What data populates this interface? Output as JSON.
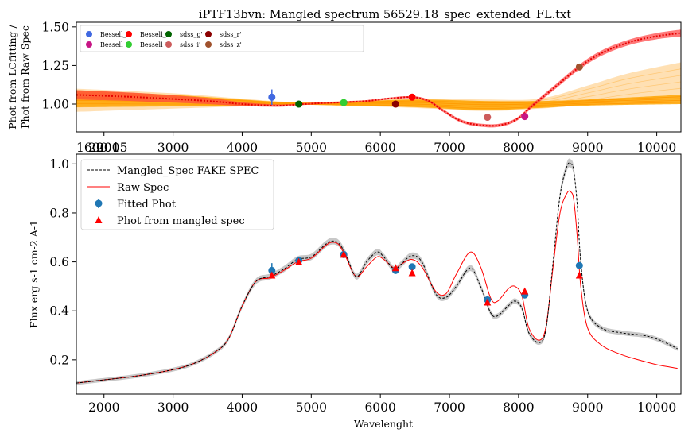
{
  "chart_data": [
    {
      "type": "line",
      "title": "iPTF13bvn: Mangled spectrum 56529.18_spec_extended_FL.txt",
      "xlabel": "",
      "ylabel": [
        "Phot from LCfitting /",
        "Phot from Raw Spec"
      ],
      "xlim": [
        1600,
        10350
      ],
      "ylim": [
        0.82,
        1.53
      ],
      "x_ticks": [
        2000,
        3000,
        4000,
        5000,
        6000,
        7000,
        8000,
        9000,
        10000
      ],
      "x_tick_labels": [
        "3000",
        "4000",
        "5000",
        "6000",
        "7000",
        "8000",
        "9000",
        "10000"
      ],
      "x_overlap_labels": [
        "1600",
        "2000",
        "2015"
      ],
      "y_ticks": [
        1.0,
        1.25,
        1.5
      ],
      "y_tick_labels": [
        "1.00",
        "1.25",
        "1.50"
      ],
      "grid": false,
      "legend_position": "top-left",
      "points": [
        {
          "name": "Bessell_B",
          "x": 4430,
          "y": 1.045,
          "err": 0.05,
          "color": "#4169e1"
        },
        {
          "name": "Bessell_I",
          "x": 8090,
          "y": 0.92,
          "err": 0.0,
          "color": "#c71585"
        },
        {
          "name": "Bessell_R",
          "x": 6460,
          "y": 1.045,
          "err": 0.0,
          "color": "#ff0000"
        },
        {
          "name": "Bessell_V",
          "x": 5470,
          "y": 1.01,
          "err": 0.0,
          "color": "#32cd32"
        },
        {
          "name": "sdss_g'",
          "x": 4820,
          "y": 1.0,
          "err": 0.0,
          "color": "#006400"
        },
        {
          "name": "sdss_i'",
          "x": 7550,
          "y": 0.915,
          "err": 0.0,
          "color": "#cd5c5c"
        },
        {
          "name": "sdss_r'",
          "x": 6220,
          "y": 1.0,
          "err": 0.0,
          "color": "#8b0000"
        },
        {
          "name": "sdss_z'",
          "x": 8880,
          "y": 1.24,
          "err": 0.02,
          "color": "#a0522d"
        }
      ],
      "mangling_curve": {
        "x": [
          1600,
          2500,
          3500,
          4000,
          4500,
          4820,
          5100,
          5470,
          5800,
          6100,
          6460,
          6700,
          6900,
          7200,
          7550,
          7800,
          8000,
          8200,
          8500,
          8880,
          9200,
          9600,
          10000,
          10350
        ],
        "y": [
          1.06,
          1.045,
          1.02,
          1.0,
          0.99,
          0.998,
          1.005,
          1.012,
          1.02,
          1.035,
          1.045,
          1.02,
          0.96,
          0.885,
          0.86,
          0.87,
          0.91,
          0.99,
          1.1,
          1.24,
          1.33,
          1.4,
          1.44,
          1.46
        ],
        "band_halfwidth": [
          0.03,
          0.027,
          0.02,
          0.012,
          0.008,
          0.006,
          0.006,
          0.006,
          0.006,
          0.006,
          0.007,
          0.008,
          0.009,
          0.01,
          0.01,
          0.01,
          0.01,
          0.012,
          0.014,
          0.016,
          0.017,
          0.018,
          0.02,
          0.022
        ],
        "color": "#ff4040"
      },
      "orange_band": {
        "x": [
          1600,
          3000,
          4000,
          4800,
          5500,
          6500,
          7500,
          8300,
          9000,
          10350
        ],
        "upper": [
          1.09,
          1.06,
          1.03,
          1.01,
          1.015,
          1.03,
          1.02,
          1.02,
          1.03,
          1.06
        ],
        "lower": [
          0.98,
          0.985,
          0.99,
          0.995,
          0.99,
          0.98,
          0.96,
          0.975,
          0.99,
          1.0
        ],
        "color": "#ffa500"
      },
      "light_band": {
        "x": [
          1600,
          3000,
          4000,
          4800,
          5500,
          6500,
          7500,
          8300,
          9000,
          9600,
          10350
        ],
        "upper": [
          1.1,
          1.07,
          1.035,
          1.012,
          1.02,
          1.035,
          1.03,
          1.035,
          1.12,
          1.2,
          1.27
        ],
        "lower": [
          0.95,
          0.97,
          0.985,
          0.995,
          0.99,
          0.975,
          0.955,
          0.97,
          1.0,
          1.03,
          1.06
        ],
        "color": "#ffd699"
      }
    },
    {
      "type": "line",
      "title": "",
      "xlabel": "Wavelenght",
      "ylabel": "Flux erg s-1 cm-2 A-1",
      "xlim": [
        1600,
        10350
      ],
      "ylim": [
        0.06,
        1.04
      ],
      "x_ticks": [
        2000,
        3000,
        4000,
        5000,
        6000,
        7000,
        8000,
        9000,
        10000
      ],
      "y_ticks": [
        0.2,
        0.4,
        0.6,
        0.8,
        1.0
      ],
      "y_tick_labels": [
        "0.2",
        "0.4",
        "0.6",
        "0.8",
        "1.0"
      ],
      "grid": false,
      "legend_position": "top-left",
      "series": [
        {
          "name": "Mangled_Spec FAKE SPEC",
          "style": "dashed",
          "color": "#000000",
          "x": [
            1600,
            2000,
            2500,
            3000,
            3300,
            3600,
            3800,
            4000,
            4200,
            4400,
            4600,
            4800,
            5000,
            5200,
            5300,
            5400,
            5500,
            5650,
            5800,
            5950,
            6050,
            6200,
            6300,
            6450,
            6600,
            6800,
            6950,
            7100,
            7300,
            7450,
            7600,
            7700,
            7850,
            7950,
            8050,
            8150,
            8300,
            8400,
            8500,
            8600,
            8700,
            8760,
            8800,
            8850,
            8900,
            9000,
            9200,
            9500,
            9800,
            10000,
            10200,
            10300
          ],
          "y": [
            0.105,
            0.118,
            0.135,
            0.16,
            0.185,
            0.23,
            0.285,
            0.42,
            0.52,
            0.54,
            0.57,
            0.61,
            0.62,
            0.67,
            0.685,
            0.675,
            0.63,
            0.54,
            0.6,
            0.64,
            0.62,
            0.57,
            0.59,
            0.625,
            0.6,
            0.47,
            0.455,
            0.5,
            0.575,
            0.5,
            0.39,
            0.38,
            0.42,
            0.44,
            0.41,
            0.31,
            0.27,
            0.33,
            0.6,
            0.87,
            0.99,
            1.0,
            0.97,
            0.83,
            0.6,
            0.4,
            0.33,
            0.31,
            0.3,
            0.285,
            0.26,
            0.245
          ]
        },
        {
          "name": "Raw Spec",
          "style": "solid",
          "color": "#ff0000",
          "x": [
            1600,
            2000,
            2500,
            3000,
            3300,
            3600,
            3800,
            4000,
            4200,
            4400,
            4600,
            4800,
            5000,
            5200,
            5300,
            5400,
            5500,
            5650,
            5800,
            5950,
            6050,
            6200,
            6300,
            6450,
            6600,
            6800,
            6950,
            7100,
            7300,
            7450,
            7600,
            7700,
            7850,
            7950,
            8050,
            8150,
            8300,
            8400,
            8500,
            8600,
            8700,
            8760,
            8800,
            8850,
            8900,
            9000,
            9200,
            9500,
            9800,
            10000,
            10200,
            10300
          ],
          "y": [
            0.105,
            0.118,
            0.135,
            0.16,
            0.185,
            0.23,
            0.285,
            0.42,
            0.52,
            0.535,
            0.565,
            0.6,
            0.615,
            0.665,
            0.68,
            0.67,
            0.62,
            0.54,
            0.58,
            0.62,
            0.61,
            0.575,
            0.59,
            0.61,
            0.58,
            0.48,
            0.47,
            0.55,
            0.64,
            0.58,
            0.45,
            0.44,
            0.49,
            0.5,
            0.46,
            0.33,
            0.28,
            0.34,
            0.58,
            0.8,
            0.88,
            0.885,
            0.85,
            0.7,
            0.5,
            0.33,
            0.26,
            0.22,
            0.195,
            0.18,
            0.17,
            0.165
          ]
        }
      ],
      "fitted_phot": {
        "name": "Fitted Phot",
        "color": "#1f77b4",
        "points": [
          [
            4430,
            0.565,
            0.03
          ],
          [
            4820,
            0.605,
            0.0
          ],
          [
            5470,
            0.63,
            0.0
          ],
          [
            6220,
            0.565,
            0.0
          ],
          [
            6460,
            0.58,
            0.0
          ],
          [
            7550,
            0.445,
            0.0
          ],
          [
            8090,
            0.465,
            0.0
          ],
          [
            8880,
            0.585,
            0.01
          ]
        ]
      },
      "phot_from_mangled": {
        "name": "Phot from mangled spec",
        "color": "#ff0000",
        "points": [
          [
            4430,
            0.545
          ],
          [
            4820,
            0.6
          ],
          [
            5470,
            0.63
          ],
          [
            6220,
            0.575
          ],
          [
            6460,
            0.555
          ],
          [
            7550,
            0.435
          ],
          [
            8090,
            0.48
          ],
          [
            8880,
            0.545
          ]
        ]
      }
    }
  ]
}
